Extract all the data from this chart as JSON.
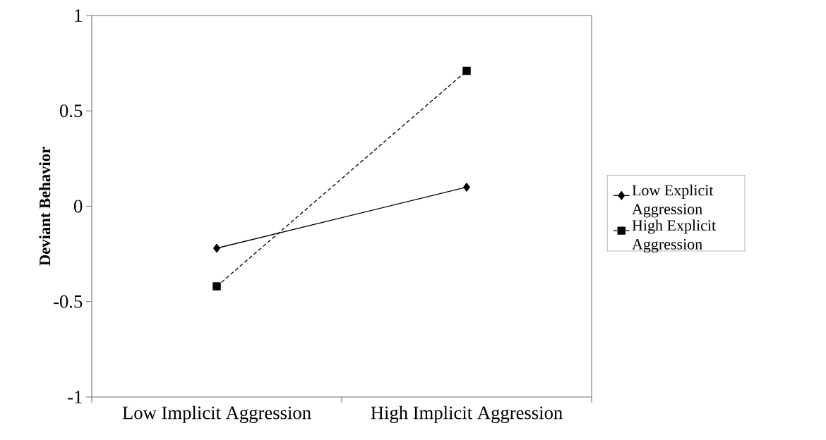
{
  "chart_data": {
    "type": "line",
    "ylabel": "Deviant Behavior",
    "categories": [
      "Low Implicit Aggression",
      "High Implicit Aggression"
    ],
    "series": [
      {
        "name": "Low Explicit Aggression",
        "color": "#000000",
        "values": [
          -0.22,
          0.1
        ],
        "marker": "diamond",
        "line_style": "solid"
      },
      {
        "name": "High Explicit Aggression",
        "color": "#000000",
        "values": [
          -0.42,
          0.71
        ],
        "marker": "square",
        "line_style": "dashed"
      }
    ],
    "ylim": [
      -1,
      1
    ],
    "yticks": [
      -1,
      -0.5,
      0,
      0.5,
      1
    ],
    "grid": false,
    "legend": "right"
  }
}
